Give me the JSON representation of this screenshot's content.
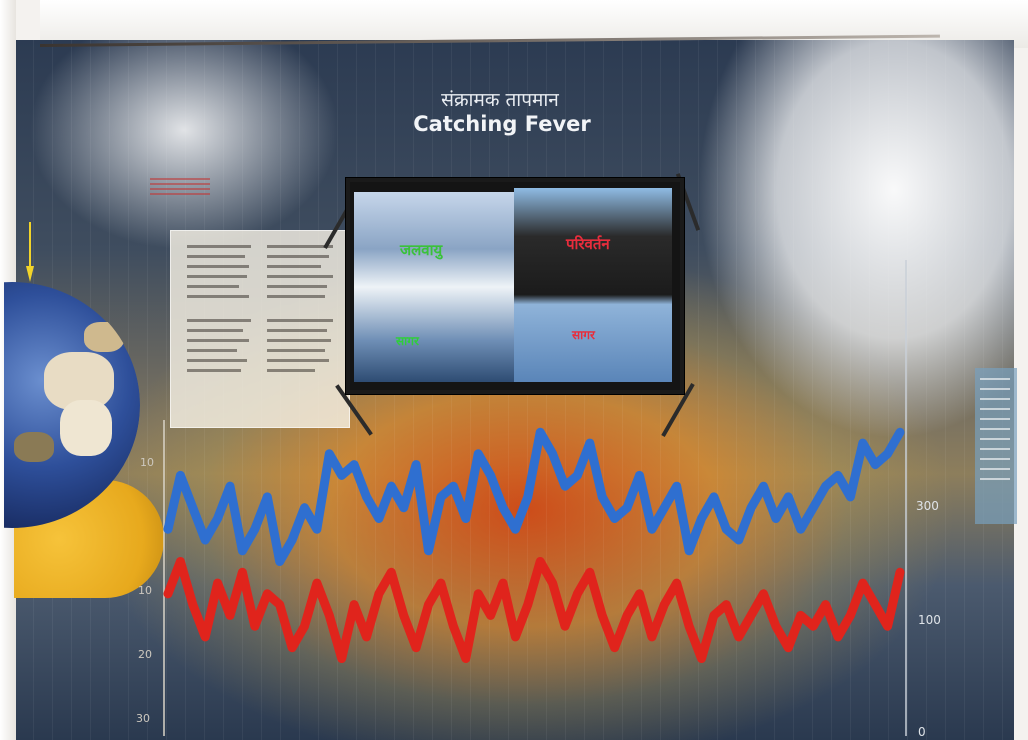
{
  "exhibit": {
    "title_hindi": "संक्रामक तापमान",
    "title_english": "Catching Fever"
  },
  "screen": {
    "left_caption": "जलवायु",
    "right_caption": "परिवर्तन",
    "left_subcaption": "सागर",
    "right_subcaption": "सागर"
  },
  "left_axis": {
    "tick_labels": [
      "10",
      "10",
      "20",
      "30"
    ]
  },
  "right_axis": {
    "tick_labels": [
      "300",
      "100",
      "0"
    ]
  },
  "colors": {
    "blue_series": "#2f6fd0",
    "red_series": "#e0241c"
  },
  "chart_data": {
    "type": "line",
    "series": [
      {
        "values": [
          12,
          7,
          10,
          13,
          11,
          8,
          14,
          12,
          9,
          15,
          13,
          10,
          12,
          5,
          7,
          6,
          9,
          11,
          8,
          10,
          6,
          14,
          9,
          8,
          11,
          5,
          7,
          10,
          12,
          9,
          3,
          5,
          8,
          7,
          4,
          9,
          11,
          10,
          7,
          12,
          10,
          8,
          14,
          11,
          9,
          12,
          13,
          10,
          8,
          11,
          9,
          12,
          10,
          8,
          7,
          9,
          4,
          6,
          5,
          3
        ]
      },
      {
        "values": [
          18,
          15,
          19,
          22,
          17,
          20,
          16,
          21,
          18,
          19,
          23,
          21,
          17,
          20,
          24,
          19,
          22,
          18,
          16,
          20,
          23,
          19,
          17,
          21,
          24,
          18,
          20,
          17,
          22,
          19,
          15,
          17,
          21,
          18,
          16,
          20,
          23,
          20,
          18,
          22,
          19,
          17,
          21,
          24,
          20,
          19,
          22,
          20,
          18,
          21,
          23,
          20,
          21,
          19,
          22,
          20,
          17,
          19,
          21,
          16
        ]
      }
    ]
  }
}
